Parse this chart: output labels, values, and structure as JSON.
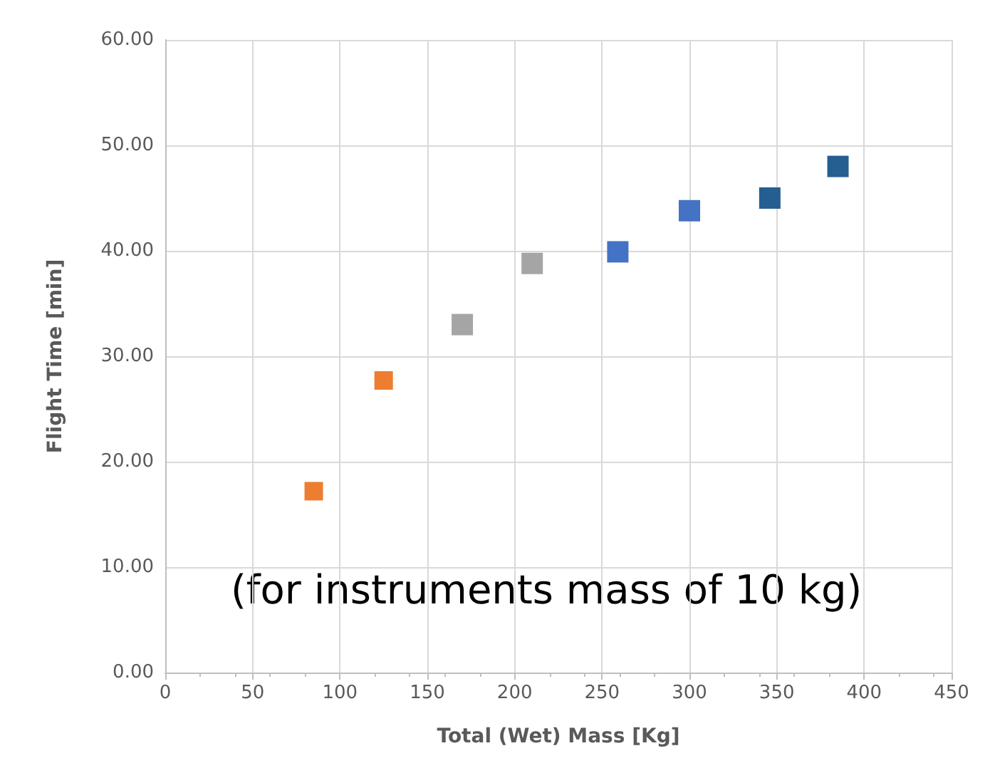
{
  "chart_data": {
    "type": "scatter",
    "xlabel": "Total (Wet) Mass [Kg]",
    "ylabel": "Flight Time [min]",
    "annotations": [
      "(for instruments mass of 10 kg)"
    ],
    "series": [
      {
        "color": "#ed7d31",
        "x": [
          85,
          125
        ],
        "values": [
          17.2,
          27.7
        ]
      },
      {
        "color": "#a5a5a5",
        "x": [
          170,
          210
        ],
        "values": [
          33.0,
          38.8
        ]
      },
      {
        "color": "#4472c4",
        "x": [
          259,
          300
        ],
        "values": [
          39.9,
          43.8
        ]
      },
      {
        "color": "#255e91",
        "x": [
          346,
          385
        ],
        "values": [
          45.0,
          48.0
        ]
      }
    ],
    "xlim": [
      0,
      450
    ],
    "xticks": [
      0,
      50,
      100,
      150,
      200,
      250,
      300,
      350,
      400,
      450
    ],
    "ylim": [
      0,
      60
    ],
    "yticks": [
      {
        "value": 0,
        "label": "0.00"
      },
      {
        "value": 10,
        "label": "10.00"
      },
      {
        "value": 20,
        "label": "20.00"
      },
      {
        "value": 30,
        "label": "30.00"
      },
      {
        "value": 40,
        "label": "40.00"
      },
      {
        "value": 50,
        "label": "50.00"
      },
      {
        "value": 60,
        "label": "60.00"
      }
    ],
    "grid": true,
    "marker": "square"
  }
}
